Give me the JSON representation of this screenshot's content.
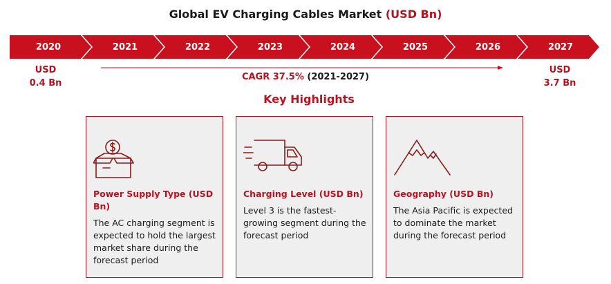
{
  "header": {
    "title_main": "Global EV Charging Cables Market",
    "title_unit": "(USD Bn)"
  },
  "timeline": {
    "years": [
      "2020",
      "2021",
      "2022",
      "2023",
      "2024",
      "2025",
      "2026",
      "2027"
    ],
    "start": {
      "currency": "USD",
      "value": "0.4 Bn"
    },
    "end": {
      "currency": "USD",
      "value": "3.7 Bn"
    },
    "cagr_label": "CAGR 37.5%",
    "cagr_period": "(2021-2027)"
  },
  "highlights": {
    "heading": "Key Highlights",
    "cards": [
      {
        "icon": "money-box-icon",
        "title": "Power Supply Type (USD Bn)",
        "text": "The AC charging segment is expected to hold the largest market share during the forecast period"
      },
      {
        "icon": "delivery-truck-icon",
        "title": "Charging Level (USD Bn)",
        "text": "Level 3 is the fastest-growing segment during the forecast period"
      },
      {
        "icon": "mountain-icon",
        "title": "Geography (USD Bn)",
        "text": "The Asia Pacific is expected to dominate the market during the forecast period"
      }
    ]
  },
  "colors": {
    "accent": "#c8101e",
    "card_background": "#efefef",
    "text": "#1a1a1a"
  }
}
